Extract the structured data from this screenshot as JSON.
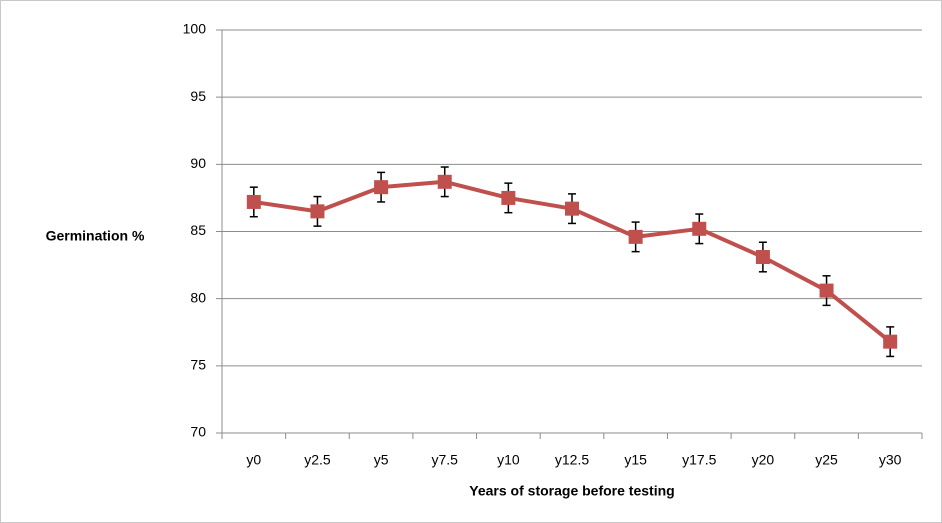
{
  "chart_data": {
    "type": "line",
    "x_label": "Years of storage before testing",
    "y_label": "Germination %",
    "categories": [
      "y0",
      "y2.5",
      "y5",
      "y7.5",
      "y10",
      "y12.5",
      "y15",
      "y17.5",
      "y20",
      "y25",
      "y30"
    ],
    "values": [
      87.2,
      86.5,
      88.3,
      88.7,
      87.5,
      86.7,
      84.6,
      85.2,
      83.1,
      80.6,
      76.8
    ],
    "errors": [
      1.1,
      1.1,
      1.1,
      1.1,
      1.1,
      1.1,
      1.1,
      1.1,
      1.1,
      1.1,
      1.1
    ],
    "color": "#c0504d",
    "ylim": [
      70,
      100
    ],
    "yticks": [
      70,
      75,
      80,
      85,
      90,
      95,
      100
    ],
    "grid": true
  }
}
